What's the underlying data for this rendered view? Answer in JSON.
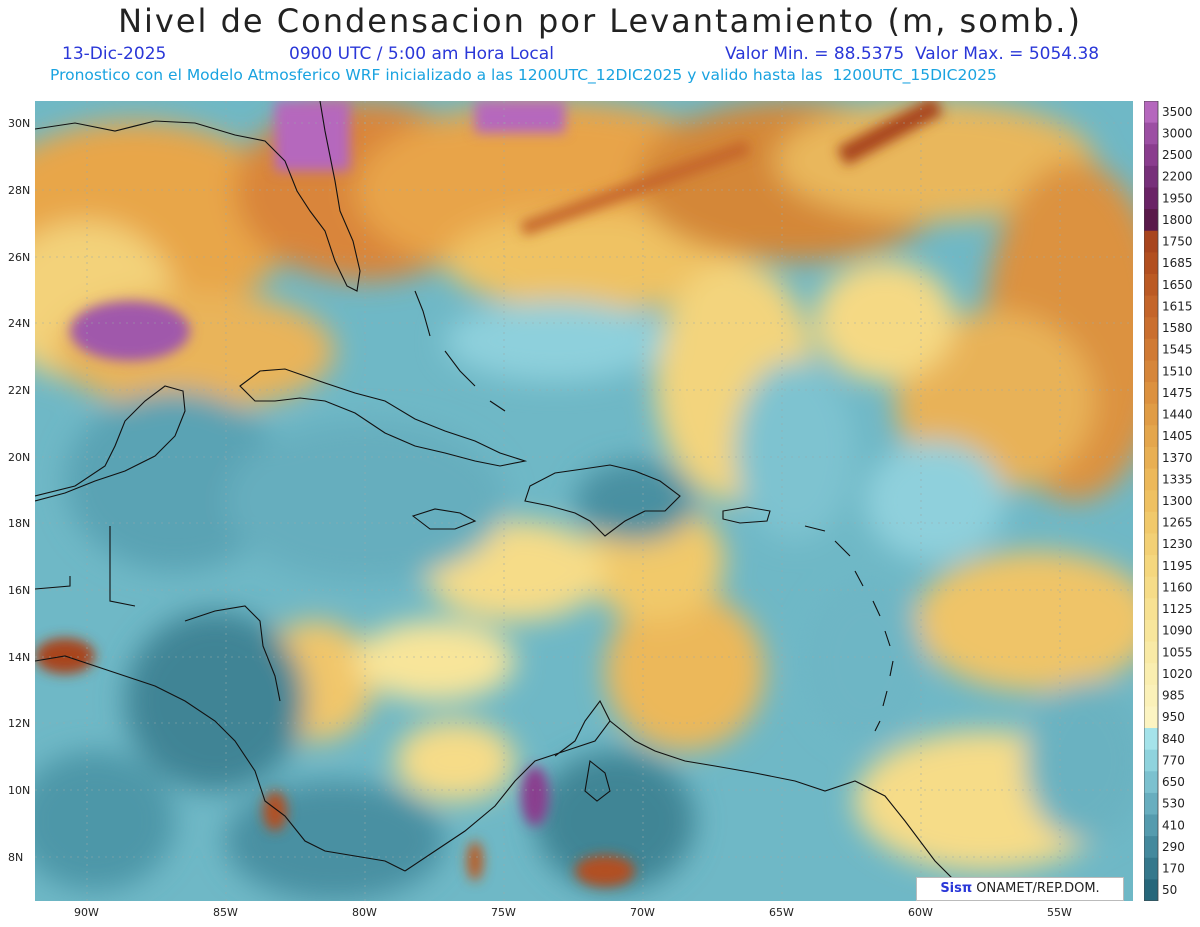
{
  "header": {
    "title": "Nivel de Condensacion por Levantamiento (m, somb.)",
    "date": "13-Dic-2025",
    "time": "0900 UTC / 5:00 am Hora Local",
    "minmax": "Valor Min. = 88.5375  Valor Max. = 5054.38",
    "model_info": "Pronostico con el Modelo Atmosferico WRF inicializado a las 1200UTC_12DIC2025 y valido hasta las  1200UTC_15DIC2025"
  },
  "axes": {
    "lon_labels": [
      "90W",
      "85W",
      "80W",
      "75W",
      "70W",
      "65W",
      "60W",
      "55W"
    ],
    "lat_labels": [
      "30N",
      "28N",
      "26N",
      "24N",
      "22N",
      "20N",
      "18N",
      "16N",
      "14N",
      "12N",
      "10N",
      "8N"
    ]
  },
  "colorbar": {
    "levels": [
      "3500",
      "3000",
      "2500",
      "2200",
      "1950",
      "1800",
      "1750",
      "1685",
      "1650",
      "1615",
      "1580",
      "1545",
      "1510",
      "1475",
      "1440",
      "1405",
      "1370",
      "1335",
      "1300",
      "1265",
      "1230",
      "1195",
      "1160",
      "1125",
      "1090",
      "1055",
      "1020",
      "985",
      "950",
      "840",
      "770",
      "650",
      "530",
      "410",
      "290",
      "170",
      "50"
    ],
    "colors": [
      "#b567bd",
      "#9c4fa3",
      "#8a3d8e",
      "#77307a",
      "#6a2366",
      "#5a1a4a",
      "#a8451e",
      "#b24f20",
      "#bb5a24",
      "#c4652a",
      "#ca6f2f",
      "#d07a34",
      "#d6863a",
      "#dc913f",
      "#e09c45",
      "#e4a64c",
      "#e8af53",
      "#ecb85a",
      "#efc162",
      "#f1c96b",
      "#f3d075",
      "#f5d77e",
      "#f6dc88",
      "#f7e192",
      "#f8e69c",
      "#f9eaa6",
      "#faeeb0",
      "#fbf1b9",
      "#fcf4c2",
      "#a5e3ea",
      "#8fd3dd",
      "#7cc1cf",
      "#68aebf",
      "#559bae",
      "#44899d",
      "#35788c",
      "#26677b"
    ]
  },
  "credit": {
    "sis": "Sisπ",
    "org": " ONAMET/REP.DOM."
  }
}
